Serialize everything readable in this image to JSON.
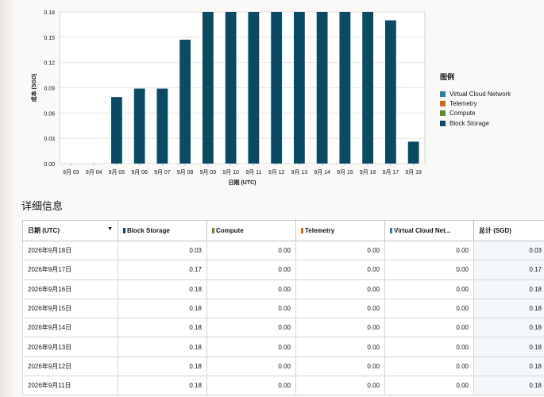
{
  "chart_data": {
    "type": "bar",
    "xlabel": "日期 (UTC)",
    "ylabel": "成本 (SGD)",
    "ylim": [
      0,
      0.18
    ],
    "yticks": [
      "0.00",
      "0.03",
      "0.06",
      "0.09",
      "0.12",
      "0.15",
      "0.18"
    ],
    "categories": [
      "9月 03",
      "9月 04",
      "9月 05",
      "9月 06",
      "9月 07",
      "9月 08",
      "9月 09",
      "9月 10",
      "9月 11",
      "9月 12",
      "9月 13",
      "9月 14",
      "9月 15",
      "9月 16",
      "9月 17",
      "9月 18"
    ],
    "series": [
      {
        "name": "Block Storage",
        "color": "#0b4a63",
        "values": [
          0,
          0,
          0.079,
          0.089,
          0.089,
          0.147,
          0.18,
          0.18,
          0.18,
          0.18,
          0.18,
          0.18,
          0.18,
          0.18,
          0.17,
          0.026
        ]
      }
    ],
    "legend_position": "right"
  },
  "legend": {
    "title": "图例",
    "items": [
      {
        "label": "Virtual Cloud Network",
        "color": "#2d82a8"
      },
      {
        "label": "Telemetry",
        "color": "#c96a1c"
      },
      {
        "label": "Compute",
        "color": "#5e8a2e"
      },
      {
        "label": "Block Storage",
        "color": "#0b4a63"
      }
    ]
  },
  "details": {
    "title": "详细信息",
    "headers": {
      "date": "日期 (UTC)",
      "block_storage": "Block Storage",
      "compute": "Compute",
      "telemetry": "Telemetry",
      "vcn": "Virtual Cloud Net...",
      "total": "总计 (SGD)"
    },
    "header_colors": {
      "block_storage": "#0b4a63",
      "compute": "#5e8a2e",
      "telemetry": "#c96a1c",
      "vcn": "#2d82a8"
    },
    "rows": [
      {
        "date": "2026年9月18日",
        "block_storage": "0.03",
        "compute": "0.00",
        "telemetry": "0.00",
        "vcn": "0.00",
        "total": "0.03"
      },
      {
        "date": "2026年9月17日",
        "block_storage": "0.17",
        "compute": "0.00",
        "telemetry": "0.00",
        "vcn": "0.00",
        "total": "0.17"
      },
      {
        "date": "2026年9月16日",
        "block_storage": "0.18",
        "compute": "0.00",
        "telemetry": "0.00",
        "vcn": "0.00",
        "total": "0.18"
      },
      {
        "date": "2026年9月15日",
        "block_storage": "0.18",
        "compute": "0.00",
        "telemetry": "0.00",
        "vcn": "0.00",
        "total": "0.18"
      },
      {
        "date": "2026年9月14日",
        "block_storage": "0.18",
        "compute": "0.00",
        "telemetry": "0.00",
        "vcn": "0.00",
        "total": "0.18"
      },
      {
        "date": "2026年9月13日",
        "block_storage": "0.18",
        "compute": "0.00",
        "telemetry": "0.00",
        "vcn": "0.00",
        "total": "0.18"
      },
      {
        "date": "2026年9月12日",
        "block_storage": "0.18",
        "compute": "0.00",
        "telemetry": "0.00",
        "vcn": "0.00",
        "total": "0.18"
      },
      {
        "date": "2026年9月11日",
        "block_storage": "0.18",
        "compute": "0.00",
        "telemetry": "0.00",
        "vcn": "0.00",
        "total": "0.18"
      }
    ]
  }
}
